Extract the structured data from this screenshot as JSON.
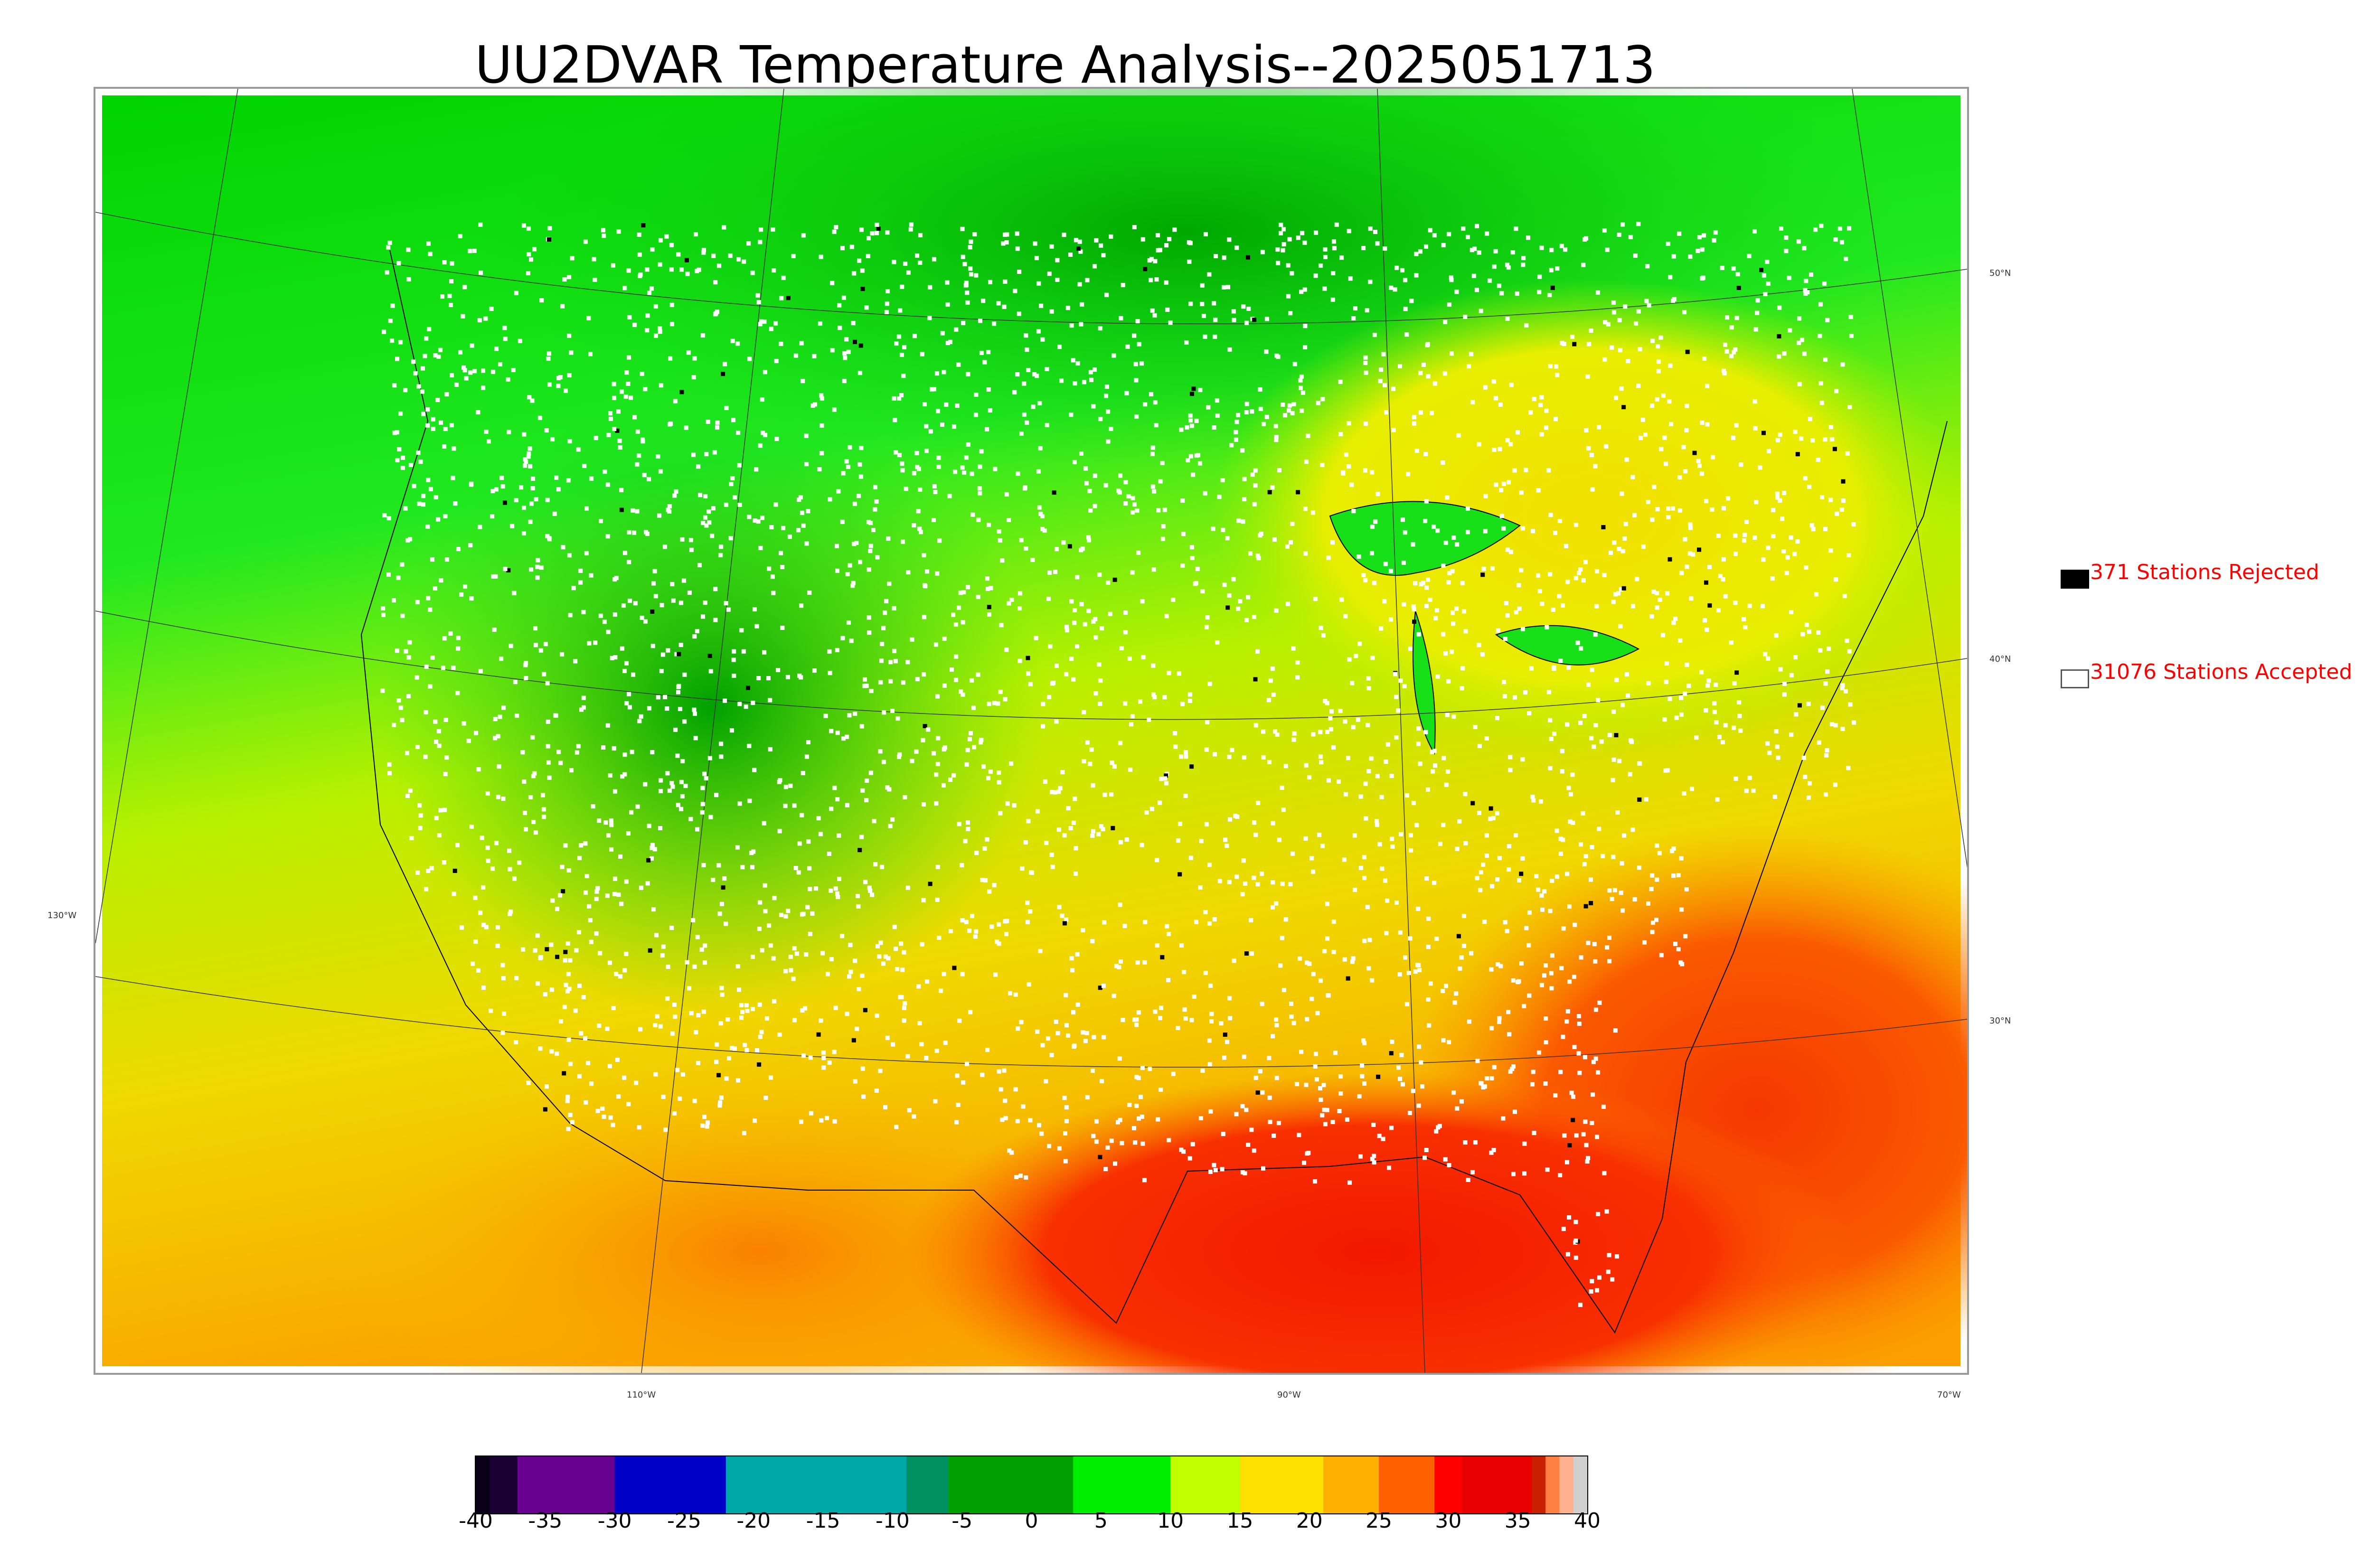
{
  "title": "UU2DVAR Temperature Analysis--2025051713",
  "map": {
    "lat_labels": [
      "50°N",
      "40°N",
      "30°N"
    ],
    "lon_labels": [
      "130°W",
      "110°W",
      "90°W",
      "70°W"
    ],
    "colors": {
      "cold_green": "#00b800",
      "green": "#19e619",
      "lime": "#b6f000",
      "yellow": "#f5e000",
      "orange": "#fb9a00",
      "red": "#f82000",
      "station_accepted": "#ffffff",
      "station_rejected": "#000000"
    }
  },
  "legend": {
    "rejected_label": "371 Stations Rejected",
    "accepted_label": "31076 Stations Accepted"
  },
  "colorbar": {
    "ticks": [
      "-40",
      "-35",
      "-30",
      "-25",
      "-20",
      "-15",
      "-10",
      "-5",
      "0",
      "5",
      "10",
      "15",
      "20",
      "25",
      "30",
      "35",
      "40"
    ],
    "segments": [
      {
        "from": -40,
        "to": -39,
        "color": "#0a0018"
      },
      {
        "from": -39,
        "to": -37,
        "color": "#1a0033"
      },
      {
        "from": -37,
        "to": -30,
        "color": "#6a0090"
      },
      {
        "from": -30,
        "to": -22,
        "color": "#0000c8"
      },
      {
        "from": -22,
        "to": -9,
        "color": "#00a8a8"
      },
      {
        "from": -9,
        "to": -6,
        "color": "#009060"
      },
      {
        "from": -6,
        "to": 3,
        "color": "#00a000"
      },
      {
        "from": 3,
        "to": 10,
        "color": "#00ee00"
      },
      {
        "from": 10,
        "to": 15,
        "color": "#c0ff00"
      },
      {
        "from": 15,
        "to": 21,
        "color": "#ffe000"
      },
      {
        "from": 21,
        "to": 25,
        "color": "#ffb000"
      },
      {
        "from": 25,
        "to": 29,
        "color": "#ff6000"
      },
      {
        "from": 29,
        "to": 31,
        "color": "#ff0000"
      },
      {
        "from": 31,
        "to": 36,
        "color": "#e80000"
      },
      {
        "from": 36,
        "to": 37,
        "color": "#c82000"
      },
      {
        "from": 37,
        "to": 38,
        "color": "#ff8040"
      },
      {
        "from": 38,
        "to": 39,
        "color": "#ffb090"
      },
      {
        "from": 39,
        "to": 40,
        "color": "#d0d0d0"
      }
    ]
  }
}
